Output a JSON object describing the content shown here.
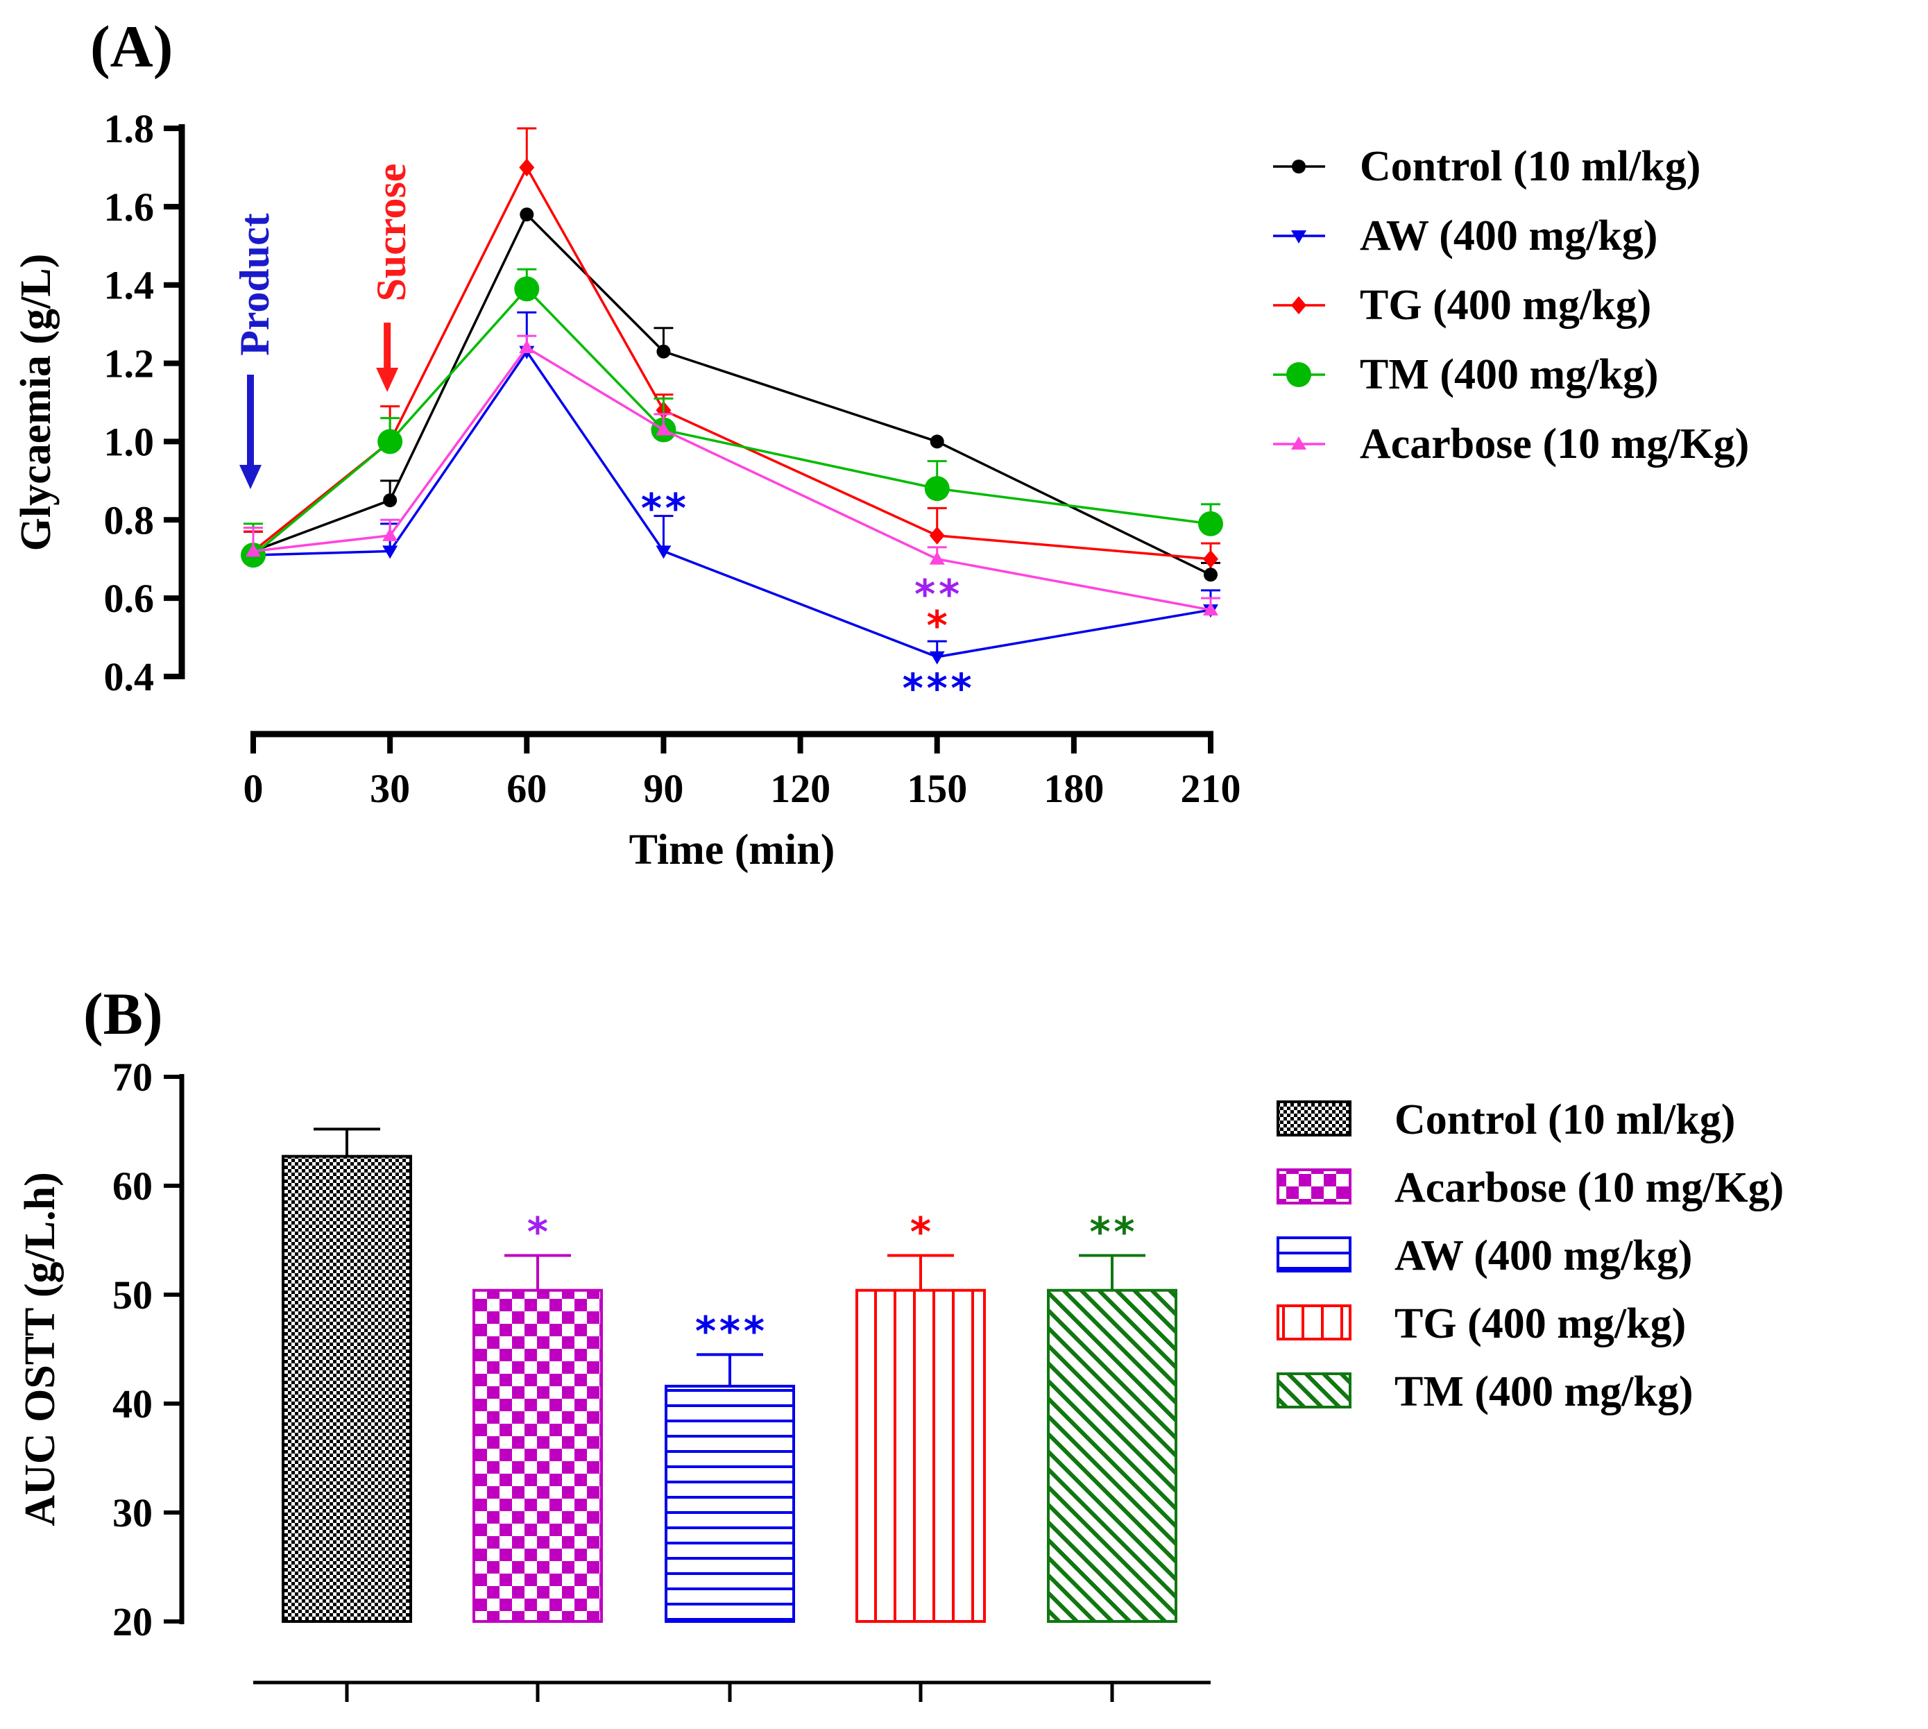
{
  "figure": {
    "panel_a_label": "(A)",
    "panel_b_label": "(B)"
  },
  "chart_data": [
    {
      "type": "line",
      "title": "",
      "panel_label": "(A)",
      "xlabel": "Time (min)",
      "ylabel": "Glycaemia (g/L)",
      "x_ticks": [
        0,
        30,
        60,
        90,
        120,
        150,
        180,
        210
      ],
      "x_tick_labels": [
        "0",
        "30",
        "60",
        "90",
        "120",
        "150",
        "180",
        "210"
      ],
      "xlim": [
        0,
        210
      ],
      "y_ticks": [
        0.4,
        0.6,
        0.8,
        1.0,
        1.2,
        1.4,
        1.6,
        1.8
      ],
      "y_tick_labels": [
        "0.4",
        "0.6",
        "0.8",
        "1.0",
        "1.2",
        "1.4",
        "1.6",
        "1.8"
      ],
      "ylim": [
        0.4,
        1.8
      ],
      "grid": false,
      "legend_position": "right",
      "x": [
        0,
        30,
        60,
        90,
        150,
        210
      ],
      "series": [
        {
          "name": "Control (10 ml/kg)",
          "color": "#000000",
          "marker": "circle",
          "values": [
            0.72,
            0.85,
            1.58,
            1.23,
            1.0,
            0.66
          ],
          "errors": [
            0.05,
            0.05,
            0.0,
            0.06,
            0.0,
            0.03
          ]
        },
        {
          "name": "AW (400 mg/kg)",
          "color": "#0000ee",
          "marker": "triangle-down",
          "values": [
            0.71,
            0.72,
            1.23,
            0.72,
            0.45,
            0.57
          ],
          "errors": [
            0.06,
            0.07,
            0.1,
            0.09,
            0.04,
            0.05
          ]
        },
        {
          "name": "TG (400 mg/kg)",
          "color": "#ff0000",
          "marker": "diamond",
          "values": [
            0.72,
            1.0,
            1.7,
            1.08,
            0.76,
            0.7
          ],
          "errors": [
            0.05,
            0.09,
            0.1,
            0.04,
            0.07,
            0.04
          ]
        },
        {
          "name": "TM (400 mg/kg)",
          "color": "#00bb00",
          "marker": "circle-large",
          "values": [
            0.71,
            1.0,
            1.39,
            1.03,
            0.88,
            0.79
          ],
          "errors": [
            0.08,
            0.06,
            0.05,
            0.08,
            0.07,
            0.05
          ]
        },
        {
          "name": "Acarbose (10 mg/Kg)",
          "color": "#ff44dd",
          "marker": "triangle-up",
          "values": [
            0.72,
            0.76,
            1.24,
            1.03,
            0.7,
            0.57
          ],
          "errors": [
            0.06,
            0.04,
            0.03,
            0.04,
            0.03,
            0.03
          ]
        }
      ],
      "annotations": [
        {
          "text": "Product",
          "color": "#1a1acc",
          "kind": "arrow",
          "x": 0
        },
        {
          "text": "Sucrose",
          "color": "#ff1a1a",
          "kind": "arrow",
          "x": 30
        },
        {
          "text": "**",
          "color": "#0000ee",
          "x": 90,
          "y": 0.83
        },
        {
          "text": "**",
          "color": "#a020f0",
          "x": 150,
          "y": 0.61
        },
        {
          "text": "*",
          "color": "#ff0000",
          "x": 150,
          "y": 0.53
        },
        {
          "text": "***",
          "color": "#0000ee",
          "x": 150,
          "y": 0.37
        }
      ]
    },
    {
      "type": "bar",
      "title": "",
      "panel_label": "(B)",
      "xlabel": "",
      "ylabel": "AUC OSTT (g/L.h)",
      "y_ticks": [
        20,
        30,
        40,
        50,
        60,
        70
      ],
      "y_tick_labels": [
        "20",
        "30",
        "40",
        "50",
        "60",
        "70"
      ],
      "ylim": [
        20,
        70
      ],
      "grid": false,
      "legend_position": "right",
      "categories": [
        "Control (10 ml/kg)",
        "Acarbose (10 mg/Kg)",
        "AW (400 mg/kg)",
        "TG (400 mg/kg)",
        "TM (400 mg/kg)"
      ],
      "values": [
        62.7,
        50.4,
        41.6,
        50.4,
        50.4
      ],
      "errors": [
        2.5,
        3.2,
        2.9,
        3.2,
        3.2
      ],
      "colors": [
        "#000000",
        "#c000c0",
        "#0000ee",
        "#ff0000",
        "#117711"
      ],
      "patterns": [
        "checker-fine",
        "checker-large",
        "horizontal-lines",
        "vertical-lines",
        "diagonal-lines"
      ],
      "significance": [
        "",
        "*",
        "***",
        "*",
        "**"
      ],
      "significance_colors": [
        "#000000",
        "#a020f0",
        "#0000ee",
        "#ff0000",
        "#117711"
      ],
      "legend_order": [
        0,
        1,
        2,
        3,
        4
      ]
    }
  ]
}
